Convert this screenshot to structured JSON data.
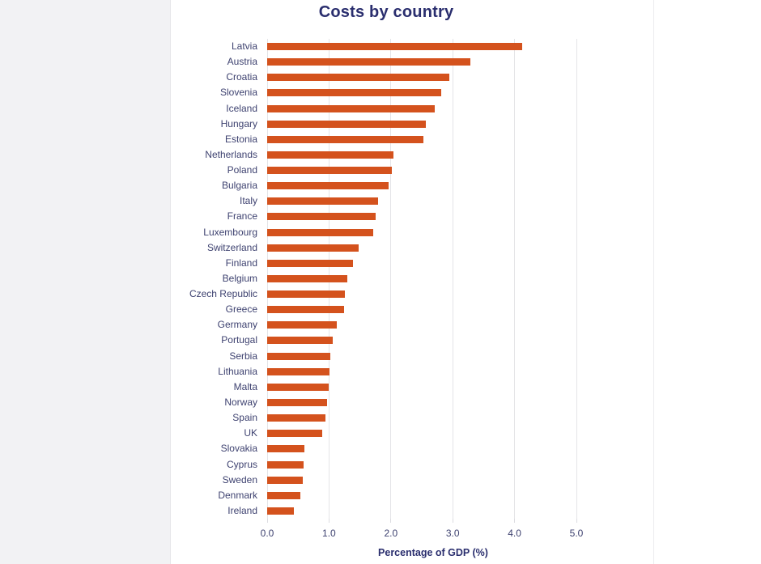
{
  "chart_data": {
    "type": "bar",
    "orientation": "horizontal",
    "title": "Costs by country",
    "xlabel": "Percentage of GDP (%)",
    "categories": [
      "Latvia",
      "Austria",
      "Croatia",
      "Slovenia",
      "Iceland",
      "Hungary",
      "Estonia",
      "Netherlands",
      "Poland",
      "Bulgaria",
      "Italy",
      "France",
      "Luxembourg",
      "Switzerland",
      "Finland",
      "Belgium",
      "Czech Republic",
      "Greece",
      "Germany",
      "Portugal",
      "Serbia",
      "Lithuania",
      "Malta",
      "Norway",
      "Spain",
      "UK",
      "Slovakia",
      "Cyprus",
      "Sweden",
      "Denmark",
      "Ireland"
    ],
    "values": [
      4.12,
      3.28,
      2.95,
      2.81,
      2.71,
      2.56,
      2.53,
      2.04,
      2.02,
      1.96,
      1.79,
      1.75,
      1.72,
      1.48,
      1.39,
      1.29,
      1.26,
      1.24,
      1.13,
      1.06,
      1.02,
      1.01,
      1.0,
      0.97,
      0.94,
      0.89,
      0.6,
      0.59,
      0.58,
      0.53,
      0.43
    ],
    "xticks": [
      "0.0",
      "1.0",
      "2.0",
      "3.0",
      "4.0",
      "5.0"
    ],
    "xlim": [
      0,
      5
    ],
    "grid": "vertical",
    "legend": "none",
    "bar_color": "#d4521d",
    "label_color": "#3e4270",
    "title_color": "#2a2e6e",
    "gridline_color": "#e4e4e7"
  }
}
